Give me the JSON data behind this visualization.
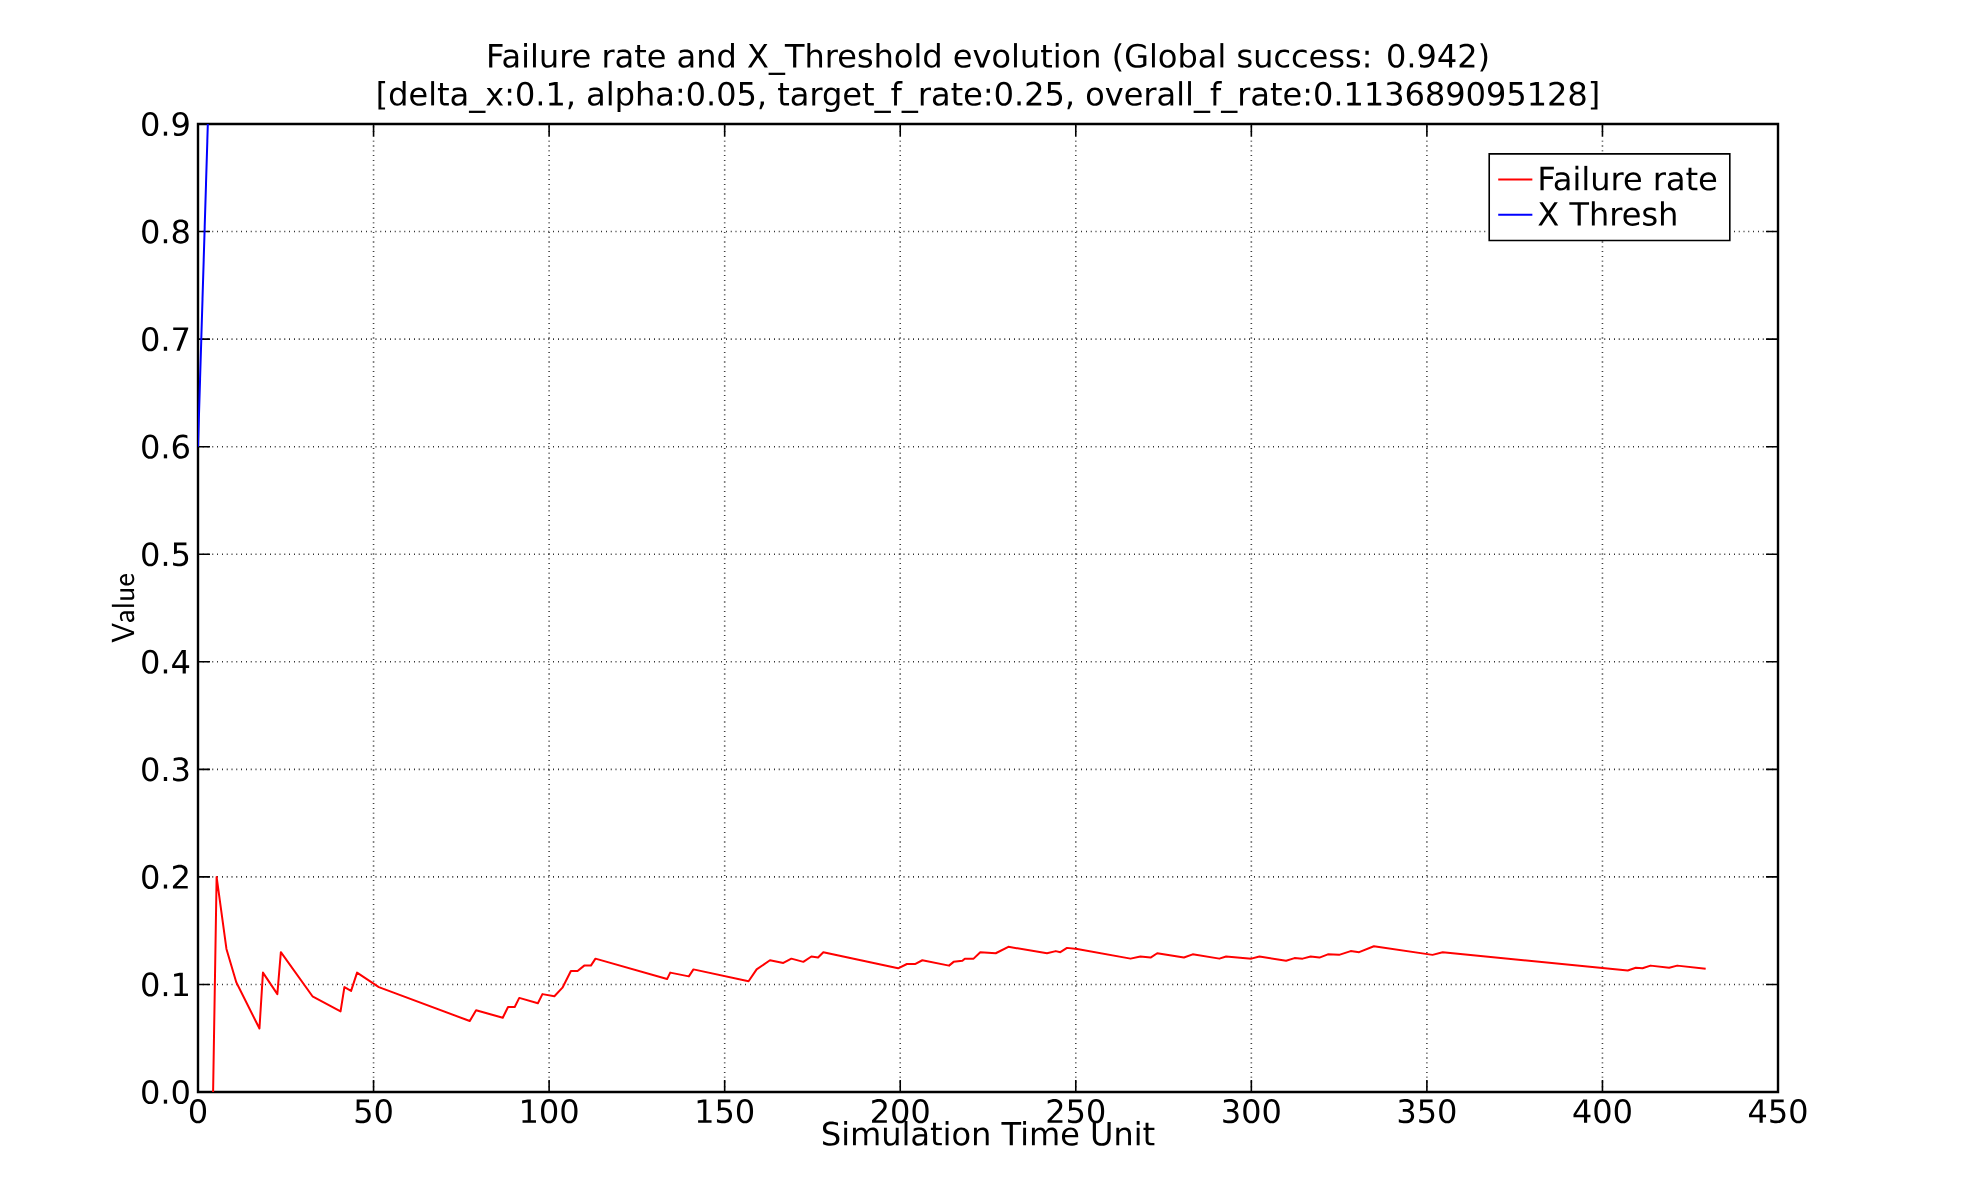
{
  "chart_data": {
    "type": "line",
    "title": "Failure rate and X_Threshold evolution (Global success: 0.942)\n[delta_x:0.1, alpha:0.05, target_f_rate:0.25, overall_f_rate:0.113689095128]",
    "xlabel": "Simulation Time Unit",
    "ylabel": "Value",
    "xlim": [
      0,
      450
    ],
    "ylim": [
      0,
      0.9
    ],
    "xticks": [
      0,
      50,
      100,
      150,
      200,
      250,
      300,
      350,
      400,
      450
    ],
    "yticks": [
      {
        "value": 0,
        "label": "0.0"
      },
      0.1,
      0.2,
      0.3,
      0.4,
      0.5,
      0.6,
      0.7,
      0.8,
      0.9
    ],
    "grid": true,
    "legend": "top right",
    "marker": "none",
    "line_style": "solid",
    "series": [
      {
        "name": "Failure rate",
        "color": "#ff0000",
        "x": [
          4.3,
          5.3,
          8.1,
          10.9,
          17.5,
          18.5,
          22.6,
          23.6,
          32.6,
          40.6,
          41.7,
          43.6,
          45.3,
          51.5,
          77.4,
          79.2,
          86.8,
          88.3,
          90.2,
          91.5,
          96.8,
          98.1,
          101.5,
          103.8,
          106.2,
          108.1,
          110,
          111.9,
          113.2,
          133.6,
          134.5,
          139.8,
          141.1,
          156.8,
          159.1,
          162.9,
          166.7,
          169,
          172.4,
          174.7,
          176.6,
          178.1,
          199.4,
          201.9,
          204.2,
          206.3,
          213.9,
          215.2,
          217.7,
          218.4,
          220.9,
          222.8,
          227.2,
          230.8,
          241.8,
          244.3,
          245.6,
          247.5,
          250.4,
          265.6,
          268.4,
          271.3,
          273.2,
          280.8,
          283.3,
          290.9,
          292.8,
          300,
          302.3,
          309.9,
          312.3,
          314.6,
          316.9,
          319.4,
          321.8,
          325,
          328.3,
          330.7,
          334.9,
          351.6,
          354.5,
          407.2,
          409.5,
          411.4,
          413.7,
          419,
          421.3,
          429.4
        ],
        "values": [
          0,
          0.2,
          0.133,
          0.102,
          0.059,
          0.111,
          0.091,
          0.13,
          0.089,
          0.075,
          0.0975,
          0.094,
          0.111,
          0.0975,
          0.066,
          0.076,
          0.069,
          0.079,
          0.079,
          0.0875,
          0.0825,
          0.091,
          0.089,
          0.097,
          0.1125,
          0.1125,
          0.1175,
          0.1175,
          0.124,
          0.105,
          0.111,
          0.1075,
          0.114,
          0.103,
          0.114,
          0.1225,
          0.12,
          0.124,
          0.121,
          0.126,
          0.125,
          0.13,
          0.115,
          0.119,
          0.119,
          0.1225,
          0.1175,
          0.121,
          0.122,
          0.124,
          0.124,
          0.13,
          0.129,
          0.135,
          0.129,
          0.131,
          0.13,
          0.134,
          0.133,
          0.124,
          0.126,
          0.125,
          0.129,
          0.125,
          0.128,
          0.124,
          0.126,
          0.124,
          0.126,
          0.122,
          0.1245,
          0.124,
          0.126,
          0.125,
          0.128,
          0.1275,
          0.131,
          0.13,
          0.1355,
          0.1275,
          0.13,
          0.113,
          0.1155,
          0.115,
          0.1175,
          0.1155,
          0.1175,
          0.1145
        ]
      },
      {
        "name": "X Thresh",
        "color": "#0000ff",
        "x": [
          0,
          2.8
        ],
        "values": [
          0.6,
          0.9
        ]
      }
    ]
  }
}
